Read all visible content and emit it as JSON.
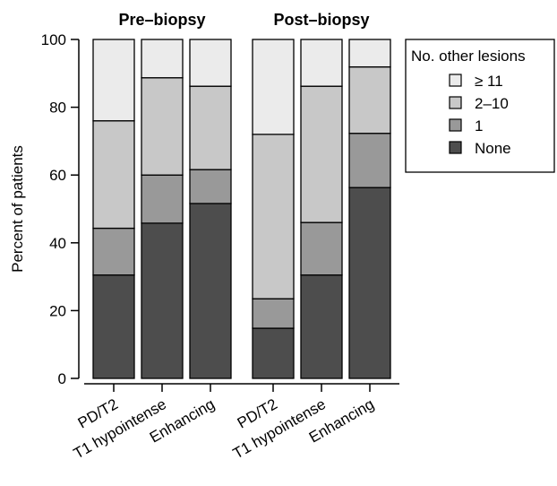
{
  "chart_data": {
    "type": "bar",
    "stacked": true,
    "ylabel": "Percent of patients",
    "xlabel": "",
    "ylim": [
      0,
      100
    ],
    "yticks": [
      0,
      20,
      40,
      60,
      80,
      100
    ],
    "groups": [
      {
        "title": "Pre–biopsy",
        "categories": [
          "PD/T2",
          "T1 hypointense",
          "Enhancing"
        ]
      },
      {
        "title": "Post–biopsy",
        "categories": [
          "PD/T2",
          "T1 hypointense",
          "Enhancing"
        ]
      }
    ],
    "legend": {
      "title": "No. other lesions",
      "position": "right",
      "entries": [
        "≥ 11",
        "2–10",
        "1",
        "None"
      ]
    },
    "series": [
      {
        "name": "None",
        "color": "#4d4d4d",
        "values": [
          30.5,
          45.8,
          51.6,
          14.8,
          30.5,
          56.3
        ]
      },
      {
        "name": "1",
        "color": "#999999",
        "values": [
          13.8,
          14.2,
          10.0,
          8.7,
          15.5,
          16.0
        ]
      },
      {
        "name": "2–10",
        "color": "#c8c8c8",
        "values": [
          31.7,
          28.7,
          24.6,
          48.5,
          40.2,
          19.6
        ]
      },
      {
        "name": "≥ 11",
        "color": "#ebebeb",
        "values": [
          24.0,
          11.3,
          13.8,
          28.0,
          13.8,
          8.1
        ]
      }
    ]
  }
}
